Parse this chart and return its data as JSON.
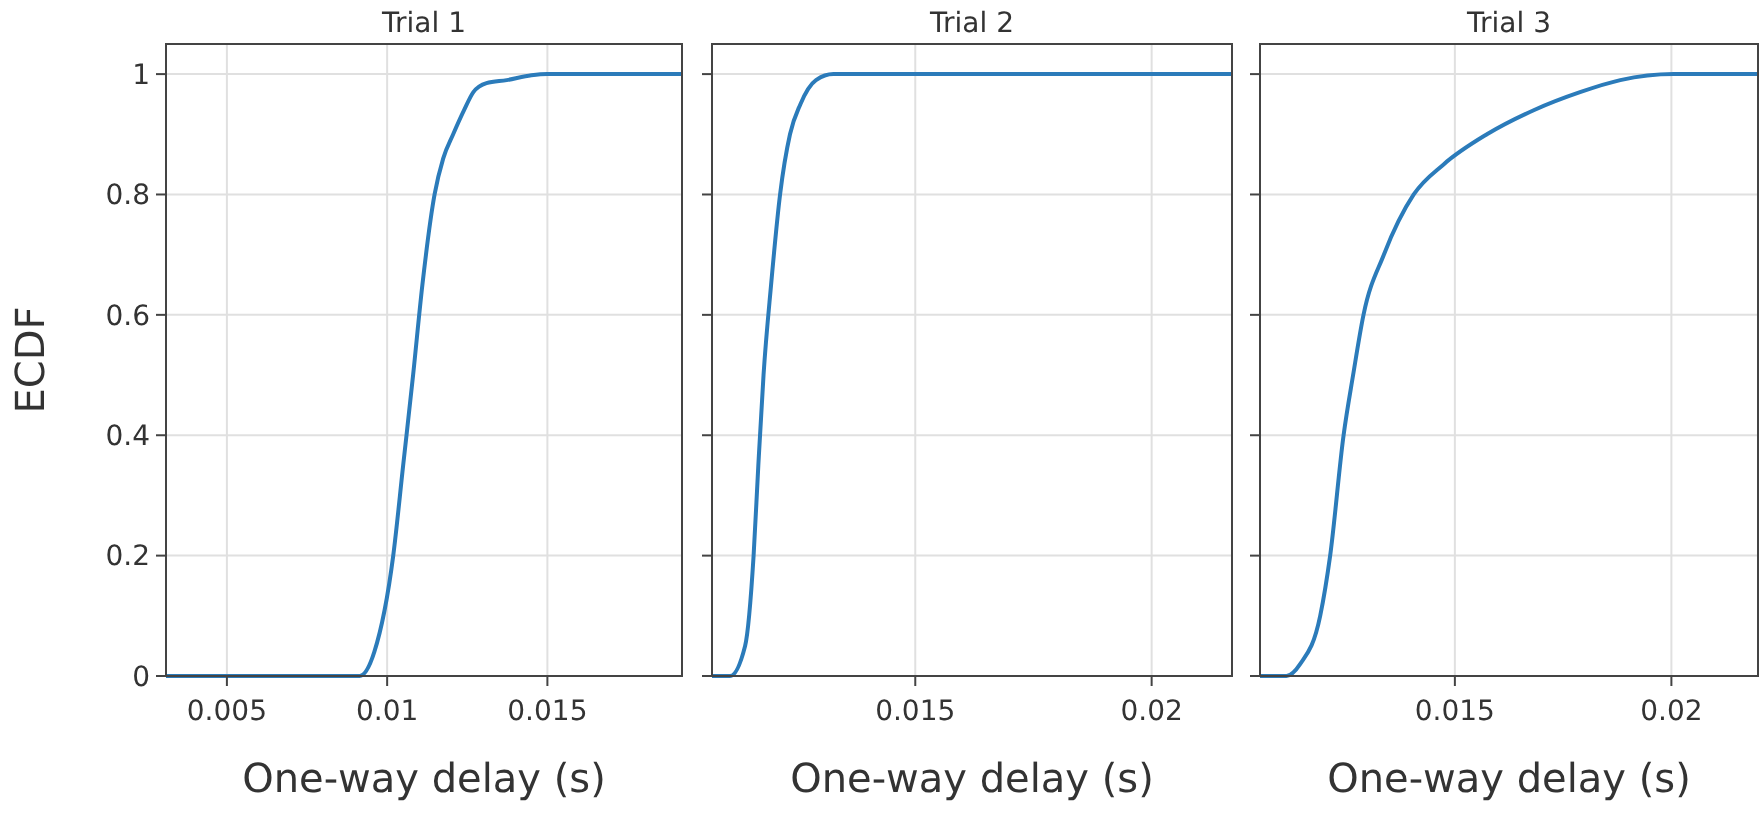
{
  "chart_data": [
    {
      "type": "line",
      "title": "Trial 1",
      "xlabel": "One-way delay (s)",
      "ylabel": "ECDF",
      "xlim": [
        0.0031,
        0.0192
      ],
      "xticks": [
        0.005,
        0.01,
        0.015
      ],
      "ylim": [
        0,
        1.05
      ],
      "yticks": [
        0,
        0.2,
        0.4,
        0.6,
        0.8,
        1
      ],
      "grid": true,
      "series": [
        {
          "color": "#2b7bba",
          "x": [
            0.0031,
            0.0085,
            0.00914,
            0.0096,
            0.01019,
            0.0105,
            0.01081,
            0.0111,
            0.01148,
            0.01175,
            0.01206,
            0.0124,
            0.01269,
            0.0131,
            0.01373,
            0.0145,
            0.015,
            0.0192
          ],
          "values": [
            0,
            0,
            0,
            0.04,
            0.2,
            0.35,
            0.5,
            0.65,
            0.8,
            0.86,
            0.9,
            0.94,
            0.97,
            0.985,
            0.99,
            0.998,
            1,
            1
          ]
        }
      ]
    },
    {
      "type": "line",
      "title": "Trial 2",
      "xlabel": "One-way delay (s)",
      "xlim": [
        0.0107,
        0.0217
      ],
      "xticks": [
        0.015,
        0.02
      ],
      "ylim": [
        0,
        1.05
      ],
      "yticks": [
        0,
        0.2,
        0.4,
        0.6,
        0.8,
        1
      ],
      "grid": true,
      "tick_labels": "x",
      "series": [
        {
          "color": "#2b7bba",
          "x": [
            0.0107,
            0.01108,
            0.0114,
            0.01158,
            0.01168,
            0.01179,
            0.01195,
            0.01214,
            0.01235,
            0.01257,
            0.0129,
            0.01327,
            0.0217
          ],
          "values": [
            0,
            0,
            0.05,
            0.2,
            0.35,
            0.5,
            0.65,
            0.8,
            0.9,
            0.95,
            0.99,
            1,
            1
          ]
        }
      ]
    },
    {
      "type": "line",
      "title": "Trial 3",
      "xlabel": "One-way delay (s)",
      "xlim": [
        0.0105,
        0.022
      ],
      "xticks": [
        0.015,
        0.02
      ],
      "ylim": [
        0,
        1.05
      ],
      "yticks": [
        0,
        0.2,
        0.4,
        0.6,
        0.8,
        1
      ],
      "grid": true,
      "tick_labels": "x",
      "series": [
        {
          "color": "#2b7bba",
          "x": [
            0.0105,
            0.01111,
            0.01143,
            0.01189,
            0.01212,
            0.01243,
            0.01265,
            0.01289,
            0.01336,
            0.01405,
            0.01474,
            0.01574,
            0.01682,
            0.01789,
            0.01882,
            0.02005,
            0.022
          ],
          "values": [
            0,
            0,
            0.02,
            0.1,
            0.2,
            0.4,
            0.5,
            0.6,
            0.7,
            0.8,
            0.85,
            0.9,
            0.94,
            0.97,
            0.99,
            1,
            1
          ]
        }
      ]
    }
  ]
}
